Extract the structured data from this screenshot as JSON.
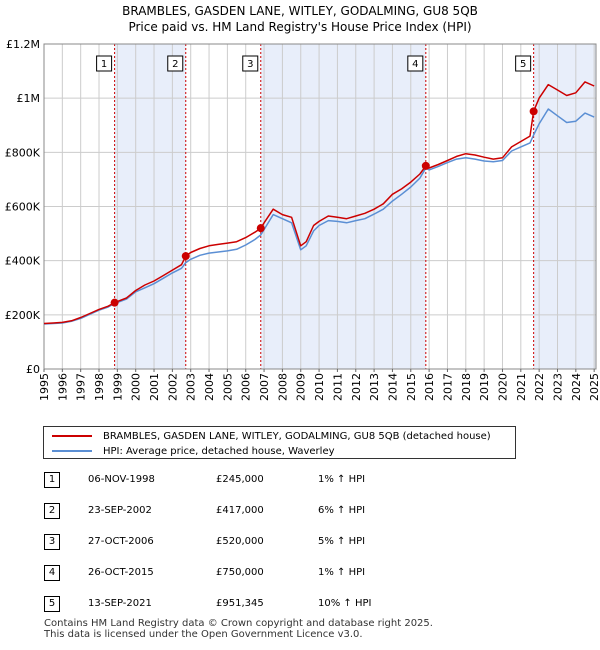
{
  "title_line1": "BRAMBLES, GASDEN LANE, WITLEY, GODALMING, GU8 5QB",
  "title_line2": "Price paid vs. HM Land Registry's House Price Index (HPI)",
  "colors": {
    "property": "#cc0000",
    "hpi": "#5b8fd4",
    "shade": "#e8eefa",
    "grid": "#cccccc"
  },
  "legend": {
    "property_label": "BRAMBLES, GASDEN LANE, WITLEY, GODALMING, GU8 5QB (detached house)",
    "hpi_label": "HPI: Average price, detached house, Waverley"
  },
  "transactions": [
    {
      "id": "1",
      "date": "06-NOV-1998",
      "price": "£245,000",
      "hpi": "1% ↑ HPI"
    },
    {
      "id": "2",
      "date": "23-SEP-2002",
      "price": "£417,000",
      "hpi": "6% ↑ HPI"
    },
    {
      "id": "3",
      "date": "27-OCT-2006",
      "price": "£520,000",
      "hpi": "5% ↑ HPI"
    },
    {
      "id": "4",
      "date": "26-OCT-2015",
      "price": "£750,000",
      "hpi": "1% ↑ HPI"
    },
    {
      "id": "5",
      "date": "13-SEP-2021",
      "price": "£951,345",
      "hpi": "10% ↑ HPI"
    }
  ],
  "footer_line1": "Contains HM Land Registry data © Crown copyright and database right 2025.",
  "footer_line2": "This data is licensed under the Open Government Licence v3.0.",
  "chart_data": {
    "type": "line",
    "xlim": [
      1995,
      2025.1
    ],
    "ylim": [
      0,
      1200000
    ],
    "x_ticks": [
      1995,
      1996,
      1997,
      1998,
      1999,
      2000,
      2001,
      2002,
      2003,
      2004,
      2005,
      2006,
      2007,
      2008,
      2009,
      2010,
      2011,
      2012,
      2013,
      2014,
      2015,
      2016,
      2017,
      2018,
      2019,
      2020,
      2021,
      2022,
      2023,
      2024,
      2025
    ],
    "y_ticks": [
      0,
      200000,
      400000,
      600000,
      800000,
      1000000,
      1200000
    ],
    "y_tick_labels": [
      "£0",
      "£200K",
      "£400K",
      "£600K",
      "£800K",
      "£1M",
      "£1.2M"
    ],
    "grid": true,
    "sales": [
      {
        "label": "1",
        "x": 1998.85,
        "y": 245000
      },
      {
        "label": "2",
        "x": 2002.73,
        "y": 417000
      },
      {
        "label": "3",
        "x": 2006.82,
        "y": 520000
      },
      {
        "label": "4",
        "x": 2015.82,
        "y": 750000
      },
      {
        "label": "5",
        "x": 2021.7,
        "y": 951345
      }
    ],
    "series": [
      {
        "name": "BRAMBLES, GASDEN LANE, WITLEY, GODALMING, GU8 5QB (detached house)",
        "x": [
          1995,
          1995.5,
          1996,
          1996.5,
          1997,
          1997.5,
          1998,
          1998.5,
          1998.85,
          1999.5,
          2000,
          2000.5,
          2001,
          2001.5,
          2002,
          2002.5,
          2002.73,
          2003,
          2003.5,
          2004,
          2004.5,
          2005,
          2005.5,
          2006,
          2006.5,
          2006.82,
          2007,
          2007.5,
          2008,
          2008.5,
          2009,
          2009.3,
          2009.7,
          2010,
          2010.5,
          2011,
          2011.5,
          2012,
          2012.5,
          2013,
          2013.5,
          2014,
          2014.5,
          2015,
          2015.5,
          2015.82,
          2016,
          2016.5,
          2017,
          2017.5,
          2018,
          2018.5,
          2019,
          2019.5,
          2020,
          2020.5,
          2021,
          2021.5,
          2021.7,
          2022,
          2022.5,
          2023,
          2023.5,
          2024,
          2024.5,
          2025
        ],
        "y": [
          168000,
          170000,
          172000,
          178000,
          190000,
          205000,
          220000,
          232000,
          245000,
          262000,
          290000,
          310000,
          325000,
          345000,
          365000,
          385000,
          417000,
          430000,
          445000,
          455000,
          460000,
          465000,
          470000,
          485000,
          505000,
          520000,
          540000,
          590000,
          570000,
          560000,
          455000,
          470000,
          530000,
          545000,
          565000,
          560000,
          555000,
          565000,
          575000,
          590000,
          610000,
          645000,
          665000,
          690000,
          720000,
          750000,
          742000,
          755000,
          770000,
          785000,
          795000,
          790000,
          782000,
          775000,
          780000,
          820000,
          840000,
          860000,
          951345,
          1000000,
          1050000,
          1030000,
          1010000,
          1020000,
          1060000,
          1045000
        ]
      },
      {
        "name": "HPI: Average price, detached house, Waverley",
        "x": [
          1995,
          1995.5,
          1996,
          1996.5,
          1997,
          1997.5,
          1998,
          1998.5,
          1998.85,
          1999.5,
          2000,
          2000.5,
          2001,
          2001.5,
          2002,
          2002.5,
          2002.73,
          2003,
          2003.5,
          2004,
          2004.5,
          2005,
          2005.5,
          2006,
          2006.5,
          2006.82,
          2007,
          2007.5,
          2008,
          2008.5,
          2009,
          2009.3,
          2009.7,
          2010,
          2010.5,
          2011,
          2011.5,
          2012,
          2012.5,
          2013,
          2013.5,
          2014,
          2014.5,
          2015,
          2015.5,
          2015.82,
          2016,
          2016.5,
          2017,
          2017.5,
          2018,
          2018.5,
          2019,
          2019.5,
          2020,
          2020.5,
          2021,
          2021.5,
          2021.7,
          2022,
          2022.5,
          2023,
          2023.5,
          2024,
          2024.5,
          2025
        ],
        "y": [
          166000,
          168000,
          170000,
          176000,
          187000,
          202000,
          217000,
          229000,
          242000,
          258000,
          285000,
          300000,
          315000,
          335000,
          355000,
          372000,
          393000,
          405000,
          420000,
          428000,
          432000,
          436000,
          442000,
          458000,
          478000,
          495000,
          515000,
          570000,
          555000,
          540000,
          440000,
          455000,
          510000,
          530000,
          548000,
          545000,
          540000,
          548000,
          555000,
          572000,
          590000,
          620000,
          645000,
          672000,
          705000,
          742000,
          735000,
          748000,
          762000,
          775000,
          780000,
          775000,
          768000,
          765000,
          770000,
          805000,
          820000,
          835000,
          864000,
          905000,
          960000,
          935000,
          910000,
          915000,
          945000,
          930000
        ]
      }
    ]
  }
}
